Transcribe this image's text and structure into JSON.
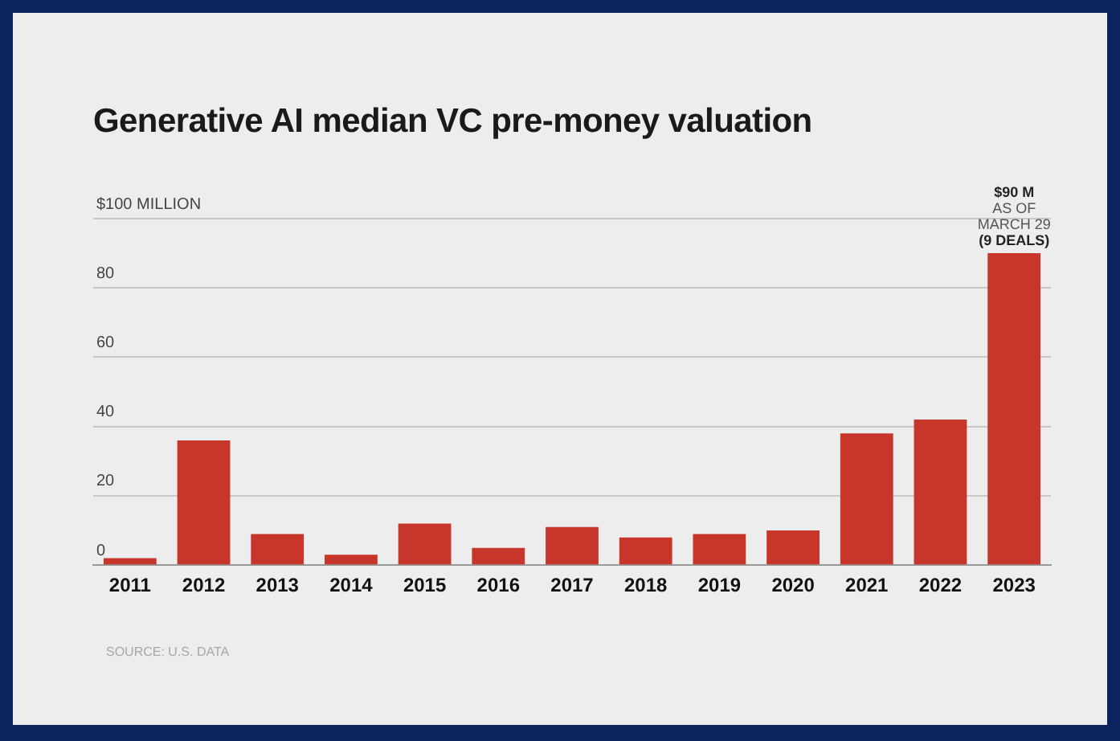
{
  "chart_data": {
    "type": "bar",
    "title": "Generative AI median VC pre-money valuation",
    "categories": [
      "2011",
      "2012",
      "2013",
      "2014",
      "2015",
      "2016",
      "2017",
      "2018",
      "2019",
      "2020",
      "2021",
      "2022",
      "2023"
    ],
    "values": [
      2,
      36,
      9,
      3,
      12,
      5,
      11,
      8,
      9,
      10,
      38,
      42,
      90
    ],
    "color": "#c8352a",
    "ylim": [
      0,
      100
    ],
    "yticks": [
      0,
      20,
      40,
      60,
      80,
      {
        "value": 100,
        "label": "$100 MILLION"
      }
    ],
    "grid": "y",
    "annotations": [
      {
        "text": "$90 M\nAS OF\nMARCH 29\n(9 DEALS)",
        "x": "2023",
        "y": 90
      },
      "SOURCE: U.S. DATA"
    ]
  }
}
